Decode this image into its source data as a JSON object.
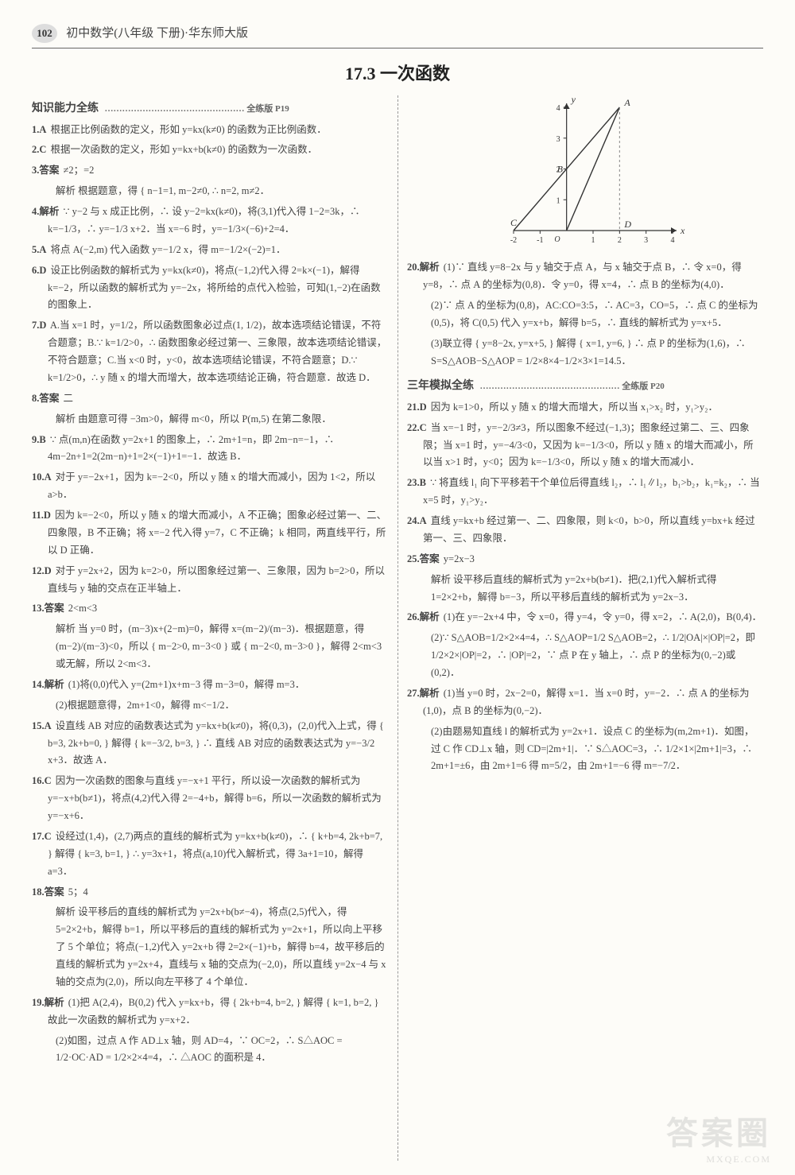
{
  "header": {
    "page_num": "102",
    "text": "初中数学(八年级 下册)·华东师大版"
  },
  "title": "17.3 一次函数",
  "sections": {
    "s1_head": "知识能力全练",
    "s1_ref": "………………………………………… 全练版 P19",
    "s2_head": "三年模拟全练",
    "s2_ref": "………………………………………… 全练版 P20"
  },
  "items": {
    "i1": "根据正比例函数的定义，形如 y=kx(k≠0) 的函数为正比例函数．",
    "i1n": "1.A",
    "i2": "根据一次函数的定义，形如 y=kx+b(k≠0) 的函数为一次函数．",
    "i2n": "2.C",
    "i3n": "3.答案",
    "i3": "≠2；=2",
    "i3s": "解析 根据题意，得 { n−1=1, m−2≠0, ∴ n=2, m≠2．",
    "i4n": "4.解析",
    "i4": "∵ y−2 与 x 成正比例，∴ 设 y−2=kx(k≠0)，将(3,1)代入得 1−2=3k，∴ k=−1/3，∴ y=−1/3 x+2．当 x=−6 时，y=−1/3×(−6)+2=4．",
    "i5n": "5.A",
    "i5": "将点 A(−2,m) 代入函数 y=−1/2 x，得 m=−1/2×(−2)=1．",
    "i6n": "6.D",
    "i6": "设正比例函数的解析式为 y=kx(k≠0)，将点(−1,2)代入得 2=k×(−1)，解得 k=−2，所以函数的解析式为 y=−2x，将所给的点代入检验，可知(1,−2)在函数的图象上．",
    "i7n": "7.D",
    "i7": "A.当 x=1 时，y=1/2，所以函数图象必过点(1, 1/2)，故本选项结论错误，不符合题意；B.∵ k=1/2>0，∴ 函数图象必经过第一、三象限，故本选项结论错误，不符合题意；C.当 x<0 时，y<0，故本选项结论错误，不符合题意；D.∵ k=1/2>0，∴ y 随 x 的增大而增大，故本选项结论正确，符合题意．故选 D．",
    "i8n": "8.答案",
    "i8": "二",
    "i8s": "解析 由题意可得 −3m>0，解得 m<0，所以 P(m,5) 在第二象限．",
    "i9n": "9.B",
    "i9": "∵ 点(m,n)在函数 y=2x+1 的图象上，∴ 2m+1=n，即 2m−n=−1，∴ 4m−2n+1=2(2m−n)+1=2×(−1)+1=−1．故选 B．",
    "i10n": "10.A",
    "i10": "对于 y=−2x+1，因为 k=−2<0，所以 y 随 x 的增大而减小，因为 1<2，所以 a>b．",
    "i11n": "11.D",
    "i11": "因为 k=−2<0，所以 y 随 x 的增大而减小，A 不正确；图象必经过第一、二、四象限，B 不正确；将 x=−2 代入得 y=7，C 不正确；k 相同，两直线平行，所以 D 正确．",
    "i12n": "12.D",
    "i12": "对于 y=2x+2，因为 k=2>0，所以图象经过第一、三象限，因为 b=2>0，所以直线与 y 轴的交点在正半轴上．",
    "i13n": "13.答案",
    "i13": "2<m<3",
    "i13s": "解析 当 y=0 时，(m−3)x+(2−m)=0，解得 x=(m−2)/(m−3)．根据题意，得 (m−2)/(m−3)<0，所以 { m−2>0, m−3<0 } 或 { m−2<0, m−3>0 }，解得 2<m<3 或无解，所以 2<m<3．",
    "i14n": "14.解析",
    "i14": "(1)将(0,0)代入 y=(2m+1)x+m−3 得 m−3=0，解得 m=3．",
    "i14b": "(2)根据题意得，2m+1<0，解得 m<−1/2．",
    "i15n": "15.A",
    "i15": "设直线 AB 对应的函数表达式为 y=kx+b(k≠0)，将(0,3)，(2,0)代入上式，得 { b=3, 2k+b=0, } 解得 { k=−3/2, b=3, } ∴ 直线 AB 对应的函数表达式为 y=−3/2 x+3．故选 A．",
    "i16n": "16.C",
    "i16": "因为一次函数的图象与直线 y=−x+1 平行，所以设一次函数的解析式为 y=−x+b(b≠1)，将点(4,2)代入得 2=−4+b，解得 b=6，所以一次函数的解析式为 y=−x+6．",
    "i17n": "17.C",
    "i17": "设经过(1,4)，(2,7)两点的直线的解析式为 y=kx+b(k≠0)，∴ { k+b=4, 2k+b=7, } 解得 { k=3, b=1, } ∴ y=3x+1，将点(a,10)代入解析式，得 3a+1=10，解得 a=3．",
    "i18n": "18.答案",
    "i18": "5；4",
    "i18s": "解析 设平移后的直线的解析式为 y=2x+b(b≠−4)，将点(2,5)代入，得 5=2×2+b，解得 b=1，所以平移后的直线的解析式为 y=2x+1，所以向上平移了 5 个单位；将点(−1,2)代入 y=2x+b 得 2=2×(−1)+b，解得 b=4，故平移后的直线的解析式为 y=2x+4，直线与 x 轴的交点为(−2,0)，所以直线 y=2x−4 与 x 轴的交点为(2,0)，所以向左平移了 4 个单位．",
    "i19n": "19.解析",
    "i19a": "(1)把 A(2,4)，B(0,2) 代入 y=kx+b，得 { 2k+b=4, b=2, } 解得 { k=1, b=2, } 故此一次函数的解析式为 y=x+2．",
    "i19b": "(2)如图，过点 A 作 AD⊥x 轴，则 AD=4，∵ OC=2，∴ S△AOC = 1/2·OC·AD = 1/2×2×4=4，∴ △AOC 的面积是 4．",
    "i20n": "20.解析",
    "i20a": "(1)∵ 直线 y=8−2x 与 y 轴交于点 A，与 x 轴交于点 B，∴ 令 x=0，得 y=8，∴ 点 A 的坐标为(0,8)．令 y=0，得 x=4，∴ 点 B 的坐标为(4,0)．",
    "i20b": "(2)∵ 点 A 的坐标为(0,8)，AC:CO=3:5，∴ AC=3，CO=5，∴ 点 C 的坐标为(0,5)，将 C(0,5) 代入 y=x+b，解得 b=5，∴ 直线的解析式为 y=x+5．",
    "i20c": "(3)联立得 { y=8−2x, y=x+5, } 解得 { x=1, y=6, } ∴ 点 P 的坐标为(1,6)，∴ S=S△AOB−S△AOP = 1/2×8×4−1/2×3×1=14.5．",
    "i21n": "21.D",
    "i21": "因为 k=1>0，所以 y 随 x 的增大而增大，所以当 x₁>x₂ 时，y₁>y₂．",
    "i22n": "22.C",
    "i22": "当 x=−1 时，y=−2/3≠3，所以图象不经过(−1,3)；图象经过第二、三、四象限；当 x=1 时，y=−4/3<0，又因为 k=−1/3<0，所以 y 随 x 的增大而减小，所以当 x>1 时，y<0；因为 k=−1/3<0，所以 y 随 x 的增大而减小．",
    "i23n": "23.B",
    "i23": "∵ 将直线 l₁ 向下平移若干个单位后得直线 l₂，∴ l₁∥l₂，b₁>b₂，k₁=k₂，∴ 当 x=5 时，y₁>y₂．",
    "i24n": "24.A",
    "i24": "直线 y=kx+b 经过第一、二、四象限，则 k<0，b>0，所以直线 y=bx+k 经过第一、三、四象限．",
    "i25n": "25.答案",
    "i25": "y=2x−3",
    "i25s": "解析 设平移后直线的解析式为 y=2x+b(b≠1)．把(2,1)代入解析式得 1=2×2+b，解得 b=−3，所以平移后直线的解析式为 y=2x−3．",
    "i26n": "26.解析",
    "i26a": "(1)在 y=−2x+4 中，令 x=0，得 y=4，令 y=0，得 x=2，∴ A(2,0)，B(0,4)．",
    "i26b": "(2)∵ S△AOB=1/2×2×4=4，∴ S△AOP=1/2 S△AOB=2，∴ 1/2|OA|×|OP|=2，即 1/2×2×|OP|=2，∴ |OP|=2，∵ 点 P 在 y 轴上，∴ 点 P 的坐标为(0,−2)或(0,2)．",
    "i27n": "27.解析",
    "i27a": "(1)当 y=0 时，2x−2=0，解得 x=1．当 x=0 时，y=−2．∴ 点 A 的坐标为(1,0)，点 B 的坐标为(0,−2)．",
    "i27b": "(2)由题易知直线 l 的解析式为 y=2x+1．设点 C 的坐标为(m,2m+1)．如图，过 C 作 CD⊥x 轴，则 CD=|2m+1|．∵ S△AOC=3，∴ 1/2×1×|2m+1|=3，∴ 2m+1=±6，由 2m+1=6 得 m=5/2，由 2m+1=−6 得 m=−7/2．"
  },
  "figure": {
    "x_range": [
      -2,
      4
    ],
    "y_range": [
      0,
      4
    ],
    "points": {
      "A": [
        2,
        4
      ],
      "B": [
        0,
        2
      ],
      "C": [
        -2,
        0
      ],
      "D": [
        2,
        0
      ],
      "O": [
        0,
        0
      ]
    },
    "axis_color": "#333",
    "line_color": "#333",
    "dash_color": "#888",
    "bg": "#fdfcf8",
    "tick_fontsize": 10,
    "label_fontsize": 12
  },
  "watermark": {
    "main": "答案圈",
    "sub": "MXQE.COM"
  }
}
